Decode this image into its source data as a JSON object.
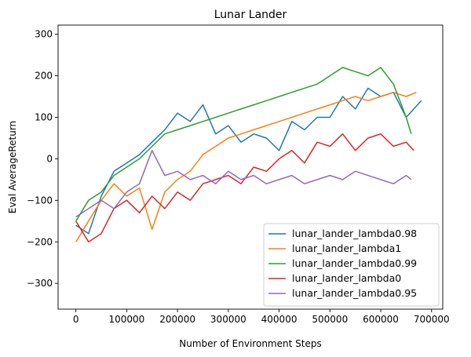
{
  "chart_data": {
    "type": "line",
    "title": "Lunar Lander",
    "xlabel": "Number of Environment Steps",
    "ylabel": "Eval AverageReturn",
    "xlim": [
      -35000,
      722000
    ],
    "ylim": [
      -362,
      322
    ],
    "xticks": [
      0,
      100000,
      200000,
      300000,
      400000,
      500000,
      600000,
      700000
    ],
    "xtick_labels": [
      "0",
      "100000",
      "200000",
      "300000",
      "400000",
      "500000",
      "600000",
      "700000"
    ],
    "yticks": [
      -300,
      -200,
      -100,
      0,
      100,
      200,
      300
    ],
    "ytick_labels": [
      "−300",
      "−200",
      "−100",
      "0",
      "100",
      "200",
      "300"
    ],
    "grid": false,
    "legend_position": "lower-right",
    "series": [
      {
        "name": "lunar_lander_lambda0.98",
        "color": "#1f77b4",
        "x": [
          0,
          25000,
          50000,
          75000,
          100000,
          125000,
          150000,
          175000,
          200000,
          225000,
          250000,
          275000,
          300000,
          325000,
          350000,
          375000,
          400000,
          425000,
          450000,
          475000,
          500000,
          525000,
          550000,
          575000,
          600000,
          625000,
          650000,
          680000
        ],
        "y": [
          -160,
          -180,
          -90,
          -30,
          -10,
          10,
          40,
          70,
          110,
          90,
          130,
          60,
          80,
          40,
          60,
          50,
          20,
          90,
          70,
          100,
          100,
          150,
          120,
          170,
          150,
          160,
          100,
          140
        ]
      },
      {
        "name": "lunar_lander_lambda1",
        "color": "#ff7f0e",
        "x": [
          0,
          25000,
          50000,
          75000,
          100000,
          125000,
          150000,
          175000,
          200000,
          225000,
          250000,
          275000,
          300000,
          325000,
          350000,
          375000,
          400000,
          425000,
          450000,
          475000,
          500000,
          525000,
          550000,
          575000,
          600000,
          625000,
          650000,
          670000
        ],
        "y": [
          -200,
          -150,
          -100,
          -60,
          -90,
          -70,
          -170,
          -80,
          -50,
          -30,
          10,
          30,
          50,
          60,
          70,
          80,
          90,
          100,
          110,
          120,
          130,
          140,
          150,
          140,
          150,
          160,
          150,
          160
        ]
      },
      {
        "name": "lunar_lander_lambda0.99",
        "color": "#2ca02c",
        "x": [
          0,
          25000,
          50000,
          75000,
          100000,
          125000,
          150000,
          175000,
          200000,
          225000,
          250000,
          275000,
          300000,
          325000,
          350000,
          375000,
          400000,
          425000,
          450000,
          475000,
          500000,
          525000,
          550000,
          575000,
          600000,
          625000,
          650000,
          660000
        ],
        "y": [
          -150,
          -100,
          -80,
          -40,
          -20,
          0,
          30,
          60,
          70,
          80,
          90,
          100,
          110,
          120,
          130,
          140,
          150,
          160,
          170,
          180,
          200,
          220,
          210,
          200,
          220,
          180,
          100,
          60
        ]
      },
      {
        "name": "lunar_lander_lambda0",
        "color": "#d62728",
        "x": [
          0,
          25000,
          50000,
          75000,
          100000,
          125000,
          150000,
          175000,
          200000,
          225000,
          250000,
          275000,
          300000,
          325000,
          350000,
          375000,
          400000,
          425000,
          450000,
          475000,
          500000,
          525000,
          550000,
          575000,
          600000,
          625000,
          650000,
          665000
        ],
        "y": [
          -150,
          -200,
          -180,
          -120,
          -100,
          -130,
          -90,
          -120,
          -80,
          -100,
          -60,
          -50,
          -40,
          -60,
          -20,
          -30,
          0,
          20,
          -10,
          40,
          30,
          60,
          20,
          50,
          60,
          30,
          40,
          20
        ]
      },
      {
        "name": "lunar_lander_lambda0.95",
        "color": "#9467bd",
        "x": [
          0,
          25000,
          50000,
          75000,
          100000,
          125000,
          150000,
          175000,
          200000,
          225000,
          250000,
          275000,
          300000,
          325000,
          350000,
          375000,
          400000,
          425000,
          450000,
          475000,
          500000,
          525000,
          550000,
          575000,
          600000,
          625000,
          650000,
          660000
        ],
        "y": [
          -140,
          -120,
          -100,
          -120,
          -80,
          -60,
          20,
          -40,
          -30,
          -50,
          -40,
          -60,
          -30,
          -50,
          -40,
          -60,
          -50,
          -40,
          -60,
          -50,
          -40,
          -50,
          -30,
          -40,
          -50,
          -60,
          -40,
          -50
        ]
      }
    ]
  }
}
